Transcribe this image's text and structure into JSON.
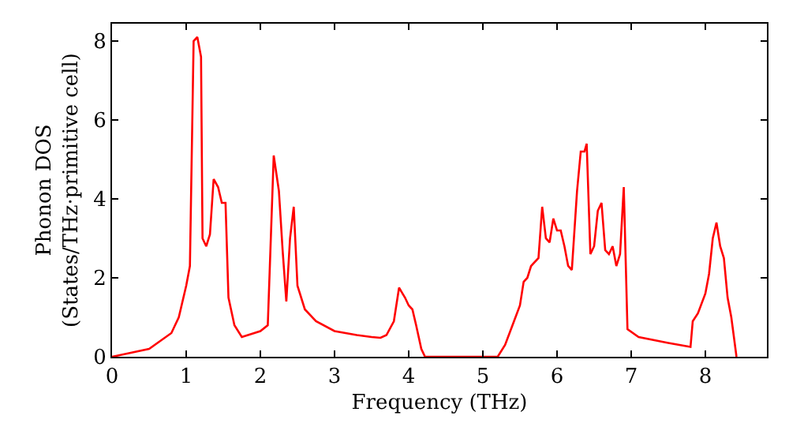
{
  "chart_data": {
    "type": "line",
    "xlabel": "Frequency (THz)",
    "ylabel": "Phonon DOS\n(States/THz·primitive cell)",
    "xlim": [
      0,
      8.83
    ],
    "ylim": [
      0,
      8.44
    ],
    "xticks": [
      0,
      1,
      2,
      3,
      4,
      5,
      6,
      7,
      8
    ],
    "yticks": [
      0,
      2,
      4,
      6,
      8
    ],
    "marker": "none",
    "line_style": "solid",
    "series": [
      {
        "color": "#ff0000",
        "x": [
          0,
          0.5,
          0.8,
          0.9,
          1.0,
          1.05,
          1.1,
          1.15,
          1.2,
          1.22,
          1.27,
          1.32,
          1.37,
          1.43,
          1.48,
          1.53,
          1.57,
          1.65,
          1.75,
          2.0,
          2.1,
          2.18,
          2.25,
          2.3,
          2.35,
          2.4,
          2.45,
          2.5,
          2.6,
          2.75,
          3.0,
          3.3,
          3.5,
          3.62,
          3.7,
          3.8,
          3.87,
          3.95,
          4.0,
          4.05,
          4.1,
          4.17,
          4.22,
          5.2,
          5.3,
          5.4,
          5.5,
          5.55,
          5.6,
          5.65,
          5.75,
          5.8,
          5.85,
          5.9,
          5.95,
          6.0,
          6.05,
          6.1,
          6.15,
          6.2,
          6.27,
          6.32,
          6.37,
          6.4,
          6.45,
          6.5,
          6.55,
          6.6,
          6.65,
          6.7,
          6.75,
          6.8,
          6.85,
          6.9,
          6.95,
          7.1,
          7.5,
          7.8,
          7.83,
          7.9,
          8.0,
          8.05,
          8.1,
          8.15,
          8.2,
          8.25,
          8.3,
          8.35,
          8.42
        ],
        "values": [
          0,
          0.2,
          0.6,
          1.0,
          1.8,
          2.3,
          8.0,
          8.1,
          7.6,
          3.0,
          2.8,
          3.1,
          4.5,
          4.3,
          3.9,
          3.9,
          1.5,
          0.8,
          0.5,
          0.65,
          0.8,
          5.1,
          4.2,
          2.7,
          1.4,
          3.0,
          3.8,
          1.8,
          1.2,
          0.9,
          0.65,
          0.55,
          0.5,
          0.48,
          0.55,
          0.9,
          1.75,
          1.5,
          1.3,
          1.2,
          0.8,
          0.2,
          0,
          0,
          0.3,
          0.8,
          1.3,
          1.9,
          2.0,
          2.3,
          2.5,
          3.8,
          3.0,
          2.9,
          3.5,
          3.2,
          3.2,
          2.8,
          2.3,
          2.2,
          4.2,
          5.2,
          5.2,
          5.4,
          2.6,
          2.8,
          3.7,
          3.9,
          2.7,
          2.6,
          2.8,
          2.3,
          2.6,
          4.3,
          0.7,
          0.5,
          0.35,
          0.25,
          0.9,
          1.1,
          1.6,
          2.1,
          3.0,
          3.4,
          2.8,
          2.5,
          1.5,
          1.0,
          0
        ]
      }
    ]
  }
}
